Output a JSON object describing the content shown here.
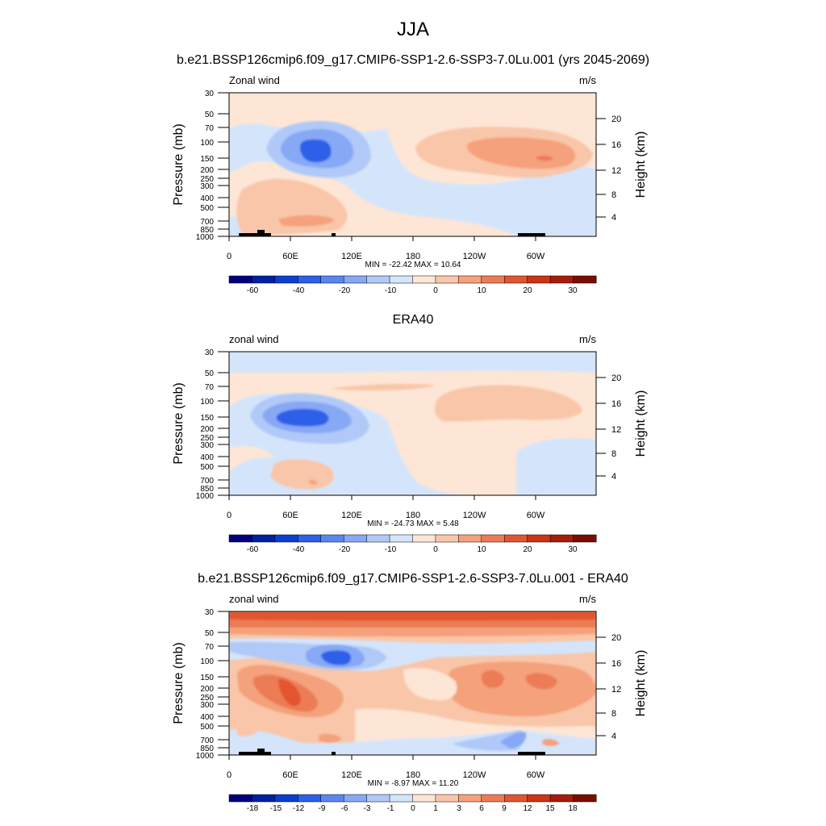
{
  "figure": {
    "title": "JJA"
  },
  "colors": {
    "scale": [
      "#00007f",
      "#0020a3",
      "#0a3fd0",
      "#2d5fe8",
      "#5a86f0",
      "#86a8f5",
      "#b0c9f8",
      "#d4e5fb",
      "#fde6d5",
      "#f9c6a9",
      "#f4a17c",
      "#ec7b55",
      "#e2552f",
      "#cc3414",
      "#a61c08",
      "#7a0c00"
    ],
    "topography": "#000000",
    "frame": "#000000"
  },
  "panels": [
    {
      "title": "b.e21.BSSP126cmip6.f09_g17.CMIP6-SSP1-2.6-SSP3-7.0Lu.001 (yrs 2045-2069)",
      "left_label": "Zonal wind",
      "right_label": "m/s",
      "y_axis_label": "Pressure (mb)",
      "y2_axis_label": "Height (km)",
      "pressure_ticks": [
        "30",
        "50",
        "70",
        "100",
        "150",
        "200",
        "250",
        "300",
        "400",
        "500",
        "700",
        "850",
        "1000"
      ],
      "height_ticks": [
        "20",
        "16",
        "12",
        "8",
        "4"
      ],
      "lon_ticks": [
        "0",
        "60E",
        "120E",
        "180",
        "120W",
        "60W"
      ],
      "stats_text": "MIN = -22.42  MAX =  10.64",
      "colorbar_labels": [
        "-60",
        "-40",
        "-20",
        "-10",
        "0",
        "10",
        "20",
        "30"
      ],
      "has_topography": true
    },
    {
      "title": "ERA40",
      "left_label": "zonal wind",
      "right_label": "m/s",
      "y_axis_label": "Pressure (mb)",
      "y2_axis_label": "Height (km)",
      "pressure_ticks": [
        "30",
        "50",
        "70",
        "100",
        "150",
        "200",
        "250",
        "300",
        "400",
        "500",
        "700",
        "850",
        "1000"
      ],
      "height_ticks": [
        "20",
        "16",
        "12",
        "8",
        "4"
      ],
      "lon_ticks": [
        "0",
        "60E",
        "120E",
        "180",
        "120W",
        "60W"
      ],
      "stats_text": "MIN = -24.73  MAX =   5.48",
      "colorbar_labels": [
        "-60",
        "-40",
        "-20",
        "-10",
        "0",
        "10",
        "20",
        "30"
      ],
      "has_topography": false
    },
    {
      "title": "b.e21.BSSP126cmip6.f09_g17.CMIP6-SSP1-2.6-SSP3-7.0Lu.001 - ERA40",
      "left_label": "zonal wind",
      "right_label": "m/s",
      "y_axis_label": "Pressure (mb)",
      "y2_axis_label": "Height (km)",
      "pressure_ticks": [
        "30",
        "50",
        "70",
        "100",
        "150",
        "200",
        "250",
        "300",
        "400",
        "500",
        "700",
        "850",
        "1000"
      ],
      "height_ticks": [
        "20",
        "16",
        "12",
        "8",
        "4"
      ],
      "lon_ticks": [
        "0",
        "60E",
        "120E",
        "180",
        "120W",
        "60W"
      ],
      "stats_text": "MIN =  -8.97  MAX =  11.20",
      "colorbar_labels": [
        "-18",
        "-15",
        "-12",
        "-9",
        "-6",
        "-3",
        "-1",
        "0",
        "1",
        "3",
        "6",
        "9",
        "12",
        "15",
        "18"
      ],
      "has_topography": true
    }
  ],
  "chart_data": [
    {
      "type": "heatmap",
      "title": "b.e21.BSSP126cmip6.f09_g17.CMIP6-SSP1-2.6-SSP3-7.0Lu.001 (yrs 2045-2069)",
      "xlabel": "",
      "ylabel": "Pressure (mb)",
      "y2label": "Height (km)",
      "units": "m/s",
      "x_ticks": [
        "0",
        "60E",
        "120E",
        "180",
        "120W",
        "60W"
      ],
      "y_ticks": [
        30,
        50,
        70,
        100,
        150,
        200,
        250,
        300,
        400,
        500,
        700,
        850,
        1000
      ],
      "y_scale": "log",
      "contour_levels": [
        -70,
        -60,
        -50,
        -40,
        -30,
        -20,
        -15,
        -10,
        -5,
        0,
        5,
        10,
        15,
        20,
        25,
        30,
        35
      ],
      "min": -22.42,
      "max": 10.64,
      "features": [
        {
          "kind": "minimum",
          "lon": 80,
          "pressure": 120,
          "value": -22
        },
        {
          "kind": "maximum",
          "lon": 295,
          "pressure": 140,
          "value": 10
        },
        {
          "kind": "positive_region",
          "lon": 70,
          "pressure": 600,
          "value": 6
        }
      ]
    },
    {
      "type": "heatmap",
      "title": "ERA40",
      "xlabel": "",
      "ylabel": "Pressure (mb)",
      "y2label": "Height (km)",
      "units": "m/s",
      "x_ticks": [
        "0",
        "60E",
        "120E",
        "180",
        "120W",
        "60W"
      ],
      "y_ticks": [
        30,
        50,
        70,
        100,
        150,
        200,
        250,
        300,
        400,
        500,
        700,
        850,
        1000
      ],
      "y_scale": "log",
      "contour_levels": [
        -70,
        -60,
        -50,
        -40,
        -30,
        -20,
        -15,
        -10,
        -5,
        0,
        5,
        10,
        15,
        20,
        25,
        30,
        35
      ],
      "min": -24.73,
      "max": 5.48,
      "features": [
        {
          "kind": "minimum",
          "lon": 75,
          "pressure": 150,
          "value": -24
        },
        {
          "kind": "positive_region",
          "lon": 280,
          "pressure": 120,
          "value": 4
        }
      ]
    },
    {
      "type": "heatmap",
      "title": "b.e21.BSSP126cmip6.f09_g17.CMIP6-SSP1-2.6-SSP3-7.0Lu.001 - ERA40",
      "xlabel": "",
      "ylabel": "Pressure (mb)",
      "y2label": "Height (km)",
      "units": "m/s",
      "x_ticks": [
        "0",
        "60E",
        "120E",
        "180",
        "120W",
        "60W"
      ],
      "y_ticks": [
        30,
        50,
        70,
        100,
        150,
        200,
        250,
        300,
        400,
        500,
        700,
        850,
        1000
      ],
      "y_scale": "log",
      "contour_levels": [
        -21,
        -18,
        -15,
        -12,
        -9,
        -6,
        -3,
        -1,
        0,
        1,
        3,
        6,
        9,
        12,
        15,
        18,
        21
      ],
      "min": -8.97,
      "max": 11.2,
      "features": [
        {
          "kind": "maximum",
          "lon": 60,
          "pressure": 230,
          "value": 11
        },
        {
          "kind": "minimum",
          "lon": 95,
          "pressure": 100,
          "value": -9
        },
        {
          "kind": "maximum",
          "lon": 260,
          "pressure": 170,
          "value": 9
        },
        {
          "kind": "positive_band",
          "lon": 180,
          "pressure": 32,
          "value": 8
        }
      ]
    }
  ]
}
